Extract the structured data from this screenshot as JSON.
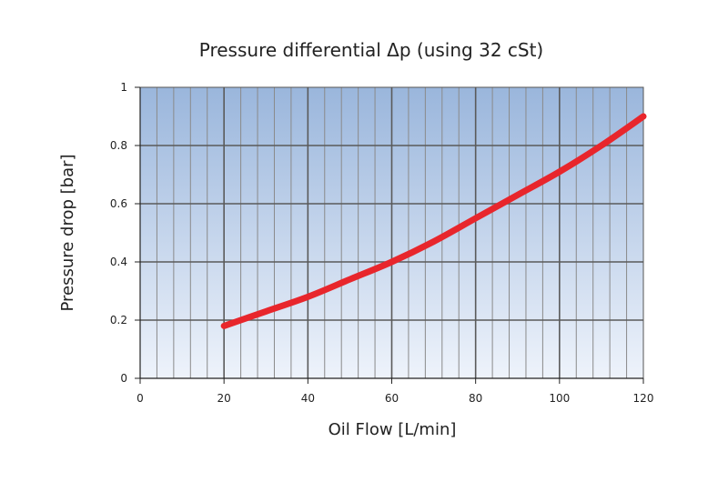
{
  "chart_data": {
    "type": "line",
    "title": "Pressure differential Δp (using 32 cSt)",
    "xlabel": "Oil Flow [L/min]",
    "ylabel": "Pressure drop [bar]",
    "xlim": [
      0,
      120
    ],
    "ylim": [
      0,
      1
    ],
    "x_ticks": [
      "0",
      "20",
      "40",
      "60",
      "80",
      "100",
      "120"
    ],
    "y_ticks": [
      "0",
      "0.2",
      "0.4",
      "0.6",
      "0.8",
      "1"
    ],
    "grid": true,
    "background": "blue gradient",
    "series": [
      {
        "color": "#e8262c",
        "x": [
          20,
          30,
          40,
          50,
          60,
          70,
          80,
          90,
          100,
          110,
          120
        ],
        "y": [
          0.18,
          0.23,
          0.28,
          0.34,
          0.4,
          0.47,
          0.55,
          0.63,
          0.71,
          0.8,
          0.9
        ]
      }
    ]
  }
}
